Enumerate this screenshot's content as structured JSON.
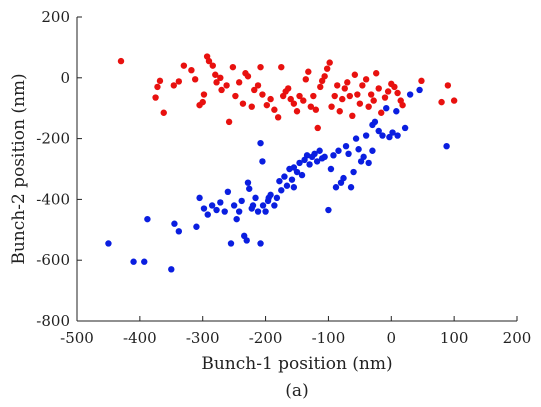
{
  "chart_data": {
    "type": "scatter",
    "xlabel": "Bunch-1 position (nm)",
    "ylabel": "Bunch-2 position (nm)",
    "caption": "(a)",
    "xlim": [
      -500,
      200
    ],
    "ylim": [
      -800,
      200
    ],
    "xticks": [
      -500,
      -400,
      -300,
      -200,
      -100,
      0,
      100,
      200
    ],
    "yticks": [
      -800,
      -600,
      -400,
      -200,
      0,
      200
    ],
    "grid": false,
    "series": [
      {
        "color": "#e8110f",
        "points": [
          [
            -430,
            55
          ],
          [
            -375,
            -65
          ],
          [
            -372,
            -30
          ],
          [
            -368,
            -10
          ],
          [
            -362,
            -115
          ],
          [
            -346,
            -25
          ],
          [
            -338,
            -12
          ],
          [
            -330,
            40
          ],
          [
            -318,
            25
          ],
          [
            -312,
            -5
          ],
          [
            -305,
            -90
          ],
          [
            -300,
            -80
          ],
          [
            -298,
            -55
          ],
          [
            -293,
            70
          ],
          [
            -290,
            55
          ],
          [
            -284,
            40
          ],
          [
            -280,
            10
          ],
          [
            -278,
            -15
          ],
          [
            -272,
            0
          ],
          [
            -270,
            -40
          ],
          [
            -262,
            -25
          ],
          [
            -258,
            -145
          ],
          [
            -252,
            35
          ],
          [
            -248,
            -60
          ],
          [
            -242,
            -15
          ],
          [
            -236,
            -85
          ],
          [
            -232,
            15
          ],
          [
            -228,
            5
          ],
          [
            -222,
            -95
          ],
          [
            -218,
            -40
          ],
          [
            -212,
            -25
          ],
          [
            -208,
            35
          ],
          [
            -205,
            -55
          ],
          [
            -198,
            -90
          ],
          [
            -192,
            -70
          ],
          [
            -186,
            -105
          ],
          [
            -180,
            -130
          ],
          [
            -175,
            35
          ],
          [
            -172,
            -60
          ],
          [
            -168,
            -45
          ],
          [
            -164,
            -35
          ],
          [
            -160,
            -70
          ],
          [
            -155,
            -85
          ],
          [
            -150,
            -110
          ],
          [
            -146,
            -60
          ],
          [
            -140,
            -75
          ],
          [
            -136,
            -5
          ],
          [
            -132,
            20
          ],
          [
            -128,
            -95
          ],
          [
            -124,
            -60
          ],
          [
            -120,
            -105
          ],
          [
            -117,
            -165
          ],
          [
            -113,
            -30
          ],
          [
            -110,
            -10
          ],
          [
            -106,
            5
          ],
          [
            -102,
            30
          ],
          [
            -98,
            50
          ],
          [
            -95,
            -95
          ],
          [
            -90,
            -60
          ],
          [
            -86,
            -25
          ],
          [
            -82,
            -110
          ],
          [
            -78,
            -70
          ],
          [
            -74,
            -35
          ],
          [
            -70,
            -15
          ],
          [
            -66,
            -60
          ],
          [
            -62,
            -125
          ],
          [
            -58,
            10
          ],
          [
            -54,
            -55
          ],
          [
            -50,
            -85
          ],
          [
            -46,
            -25
          ],
          [
            -40,
            -5
          ],
          [
            -36,
            -95
          ],
          [
            -32,
            -55
          ],
          [
            -28,
            -75
          ],
          [
            -24,
            15
          ],
          [
            -20,
            -35
          ],
          [
            -16,
            -115
          ],
          [
            -10,
            -65
          ],
          [
            -5,
            -45
          ],
          [
            0,
            -20
          ],
          [
            5,
            -30
          ],
          [
            10,
            -50
          ],
          [
            15,
            -75
          ],
          [
            18,
            -90
          ],
          [
            48,
            -10
          ],
          [
            80,
            -80
          ],
          [
            90,
            -25
          ],
          [
            100,
            -75
          ]
        ]
      },
      {
        "color": "#0a1ee0",
        "points": [
          [
            -450,
            -545
          ],
          [
            -410,
            -605
          ],
          [
            -393,
            -605
          ],
          [
            -388,
            -465
          ],
          [
            -350,
            -630
          ],
          [
            -345,
            -480
          ],
          [
            -338,
            -505
          ],
          [
            -310,
            -490
          ],
          [
            -305,
            -395
          ],
          [
            -298,
            -430
          ],
          [
            -292,
            -450
          ],
          [
            -285,
            -420
          ],
          [
            -278,
            -435
          ],
          [
            -272,
            -410
          ],
          [
            -265,
            -440
          ],
          [
            -260,
            -375
          ],
          [
            -255,
            -545
          ],
          [
            -250,
            -420
          ],
          [
            -246,
            -465
          ],
          [
            -242,
            -440
          ],
          [
            -238,
            -405
          ],
          [
            -234,
            -520
          ],
          [
            -230,
            -535
          ],
          [
            -226,
            -365
          ],
          [
            -222,
            -430
          ],
          [
            -220,
            -420
          ],
          [
            -216,
            -395
          ],
          [
            -212,
            -440
          ],
          [
            -208,
            -545
          ],
          [
            -204,
            -420
          ],
          [
            -200,
            -440
          ],
          [
            -196,
            -405
          ],
          [
            -192,
            -385
          ],
          [
            -186,
            -420
          ],
          [
            -182,
            -395
          ],
          [
            -178,
            -340
          ],
          [
            -175,
            -370
          ],
          [
            -170,
            -325
          ],
          [
            -166,
            -355
          ],
          [
            -162,
            -300
          ],
          [
            -158,
            -335
          ],
          [
            -155,
            -295
          ],
          [
            -150,
            -310
          ],
          [
            -146,
            -280
          ],
          [
            -142,
            -320
          ],
          [
            -138,
            -270
          ],
          [
            -134,
            -255
          ],
          [
            -130,
            -285
          ],
          [
            -126,
            -260
          ],
          [
            -122,
            -250
          ],
          [
            -118,
            -275
          ],
          [
            -114,
            -240
          ],
          [
            -110,
            -265
          ],
          [
            -106,
            -260
          ],
          [
            -100,
            -435
          ],
          [
            -96,
            -300
          ],
          [
            -92,
            -255
          ],
          [
            -88,
            -360
          ],
          [
            -84,
            -240
          ],
          [
            -80,
            -345
          ],
          [
            -76,
            -330
          ],
          [
            -72,
            -225
          ],
          [
            -68,
            -250
          ],
          [
            -64,
            -360
          ],
          [
            -60,
            -310
          ],
          [
            -56,
            -200
          ],
          [
            -52,
            -235
          ],
          [
            -48,
            -275
          ],
          [
            -44,
            -260
          ],
          [
            -40,
            -190
          ],
          [
            -36,
            -280
          ],
          [
            -30,
            -155
          ],
          [
            -26,
            -145
          ],
          [
            -20,
            -175
          ],
          [
            -14,
            -190
          ],
          [
            -8,
            -100
          ],
          [
            -3,
            -195
          ],
          [
            2,
            -180
          ],
          [
            8,
            -110
          ],
          [
            22,
            -165
          ],
          [
            30,
            -55
          ],
          [
            45,
            -40
          ],
          [
            88,
            -225
          ],
          [
            -208,
            -215
          ],
          [
            -205,
            -275
          ],
          [
            -228,
            -345
          ],
          [
            -195,
            -395
          ],
          [
            -155,
            -360
          ],
          [
            -30,
            -240
          ],
          [
            10,
            -190
          ]
        ]
      }
    ]
  }
}
